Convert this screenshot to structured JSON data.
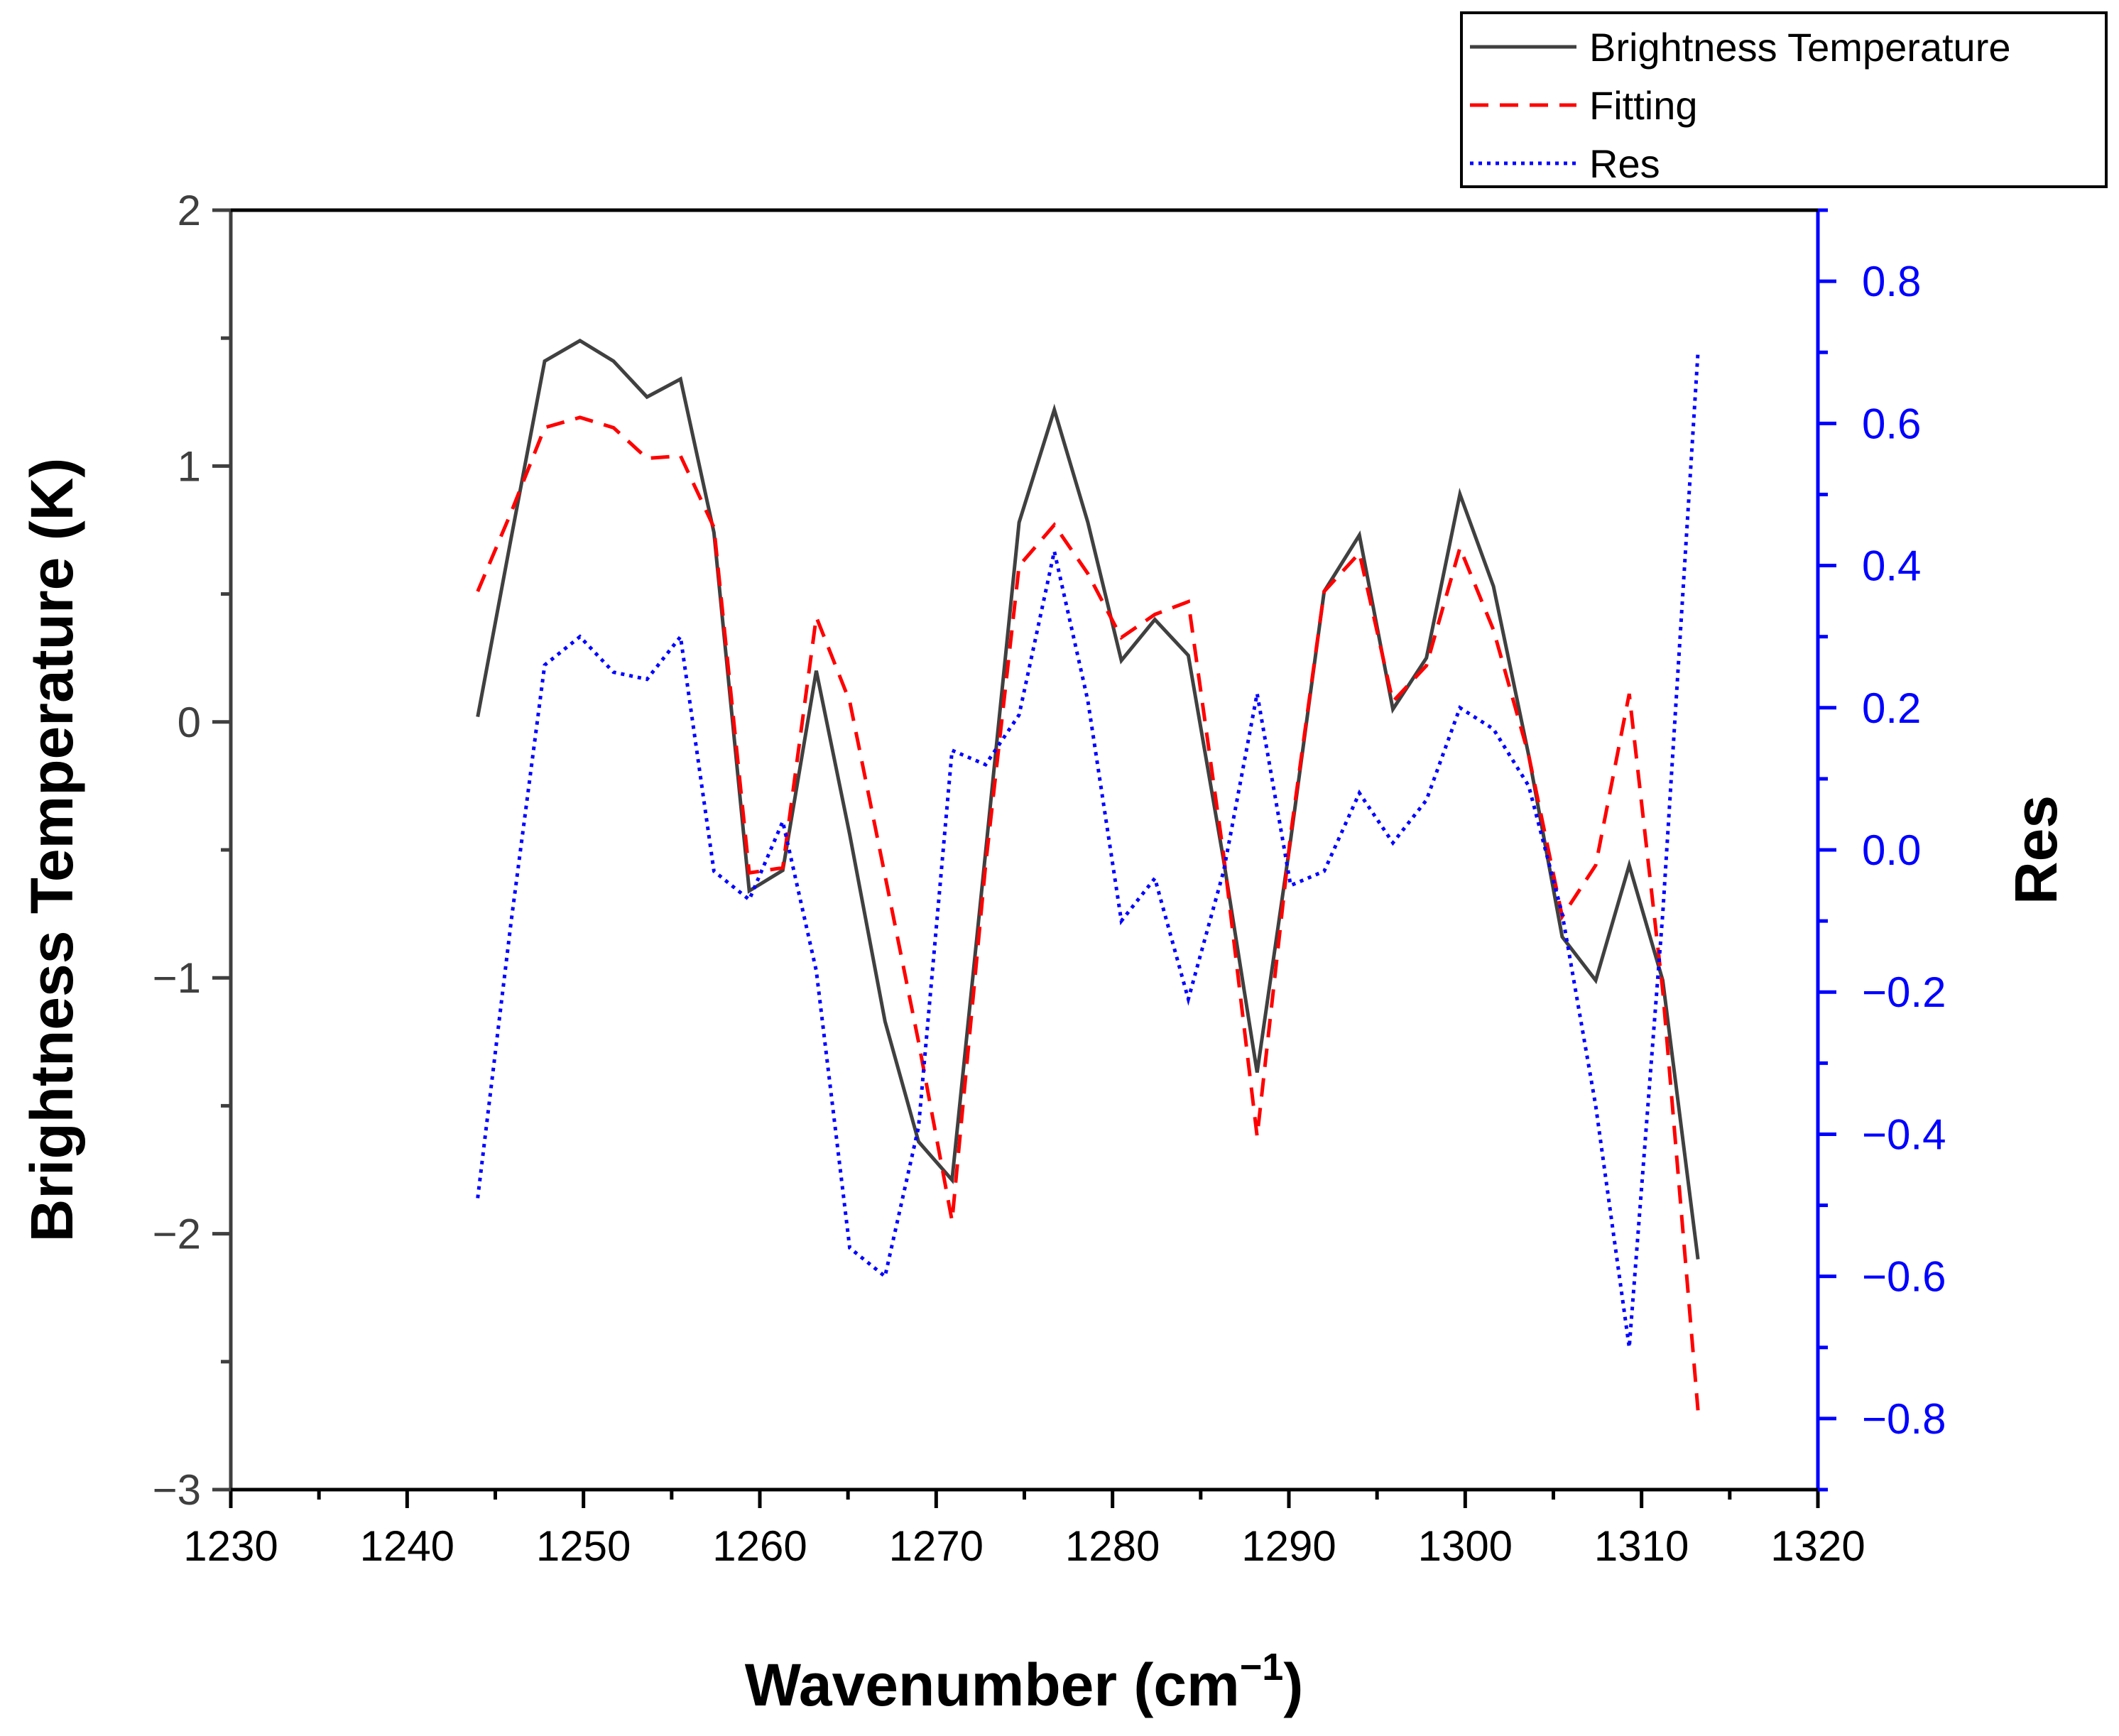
{
  "chart_data": {
    "type": "line",
    "title": "",
    "xlabel": "Wavenumber (cm",
    "xlabel_sup": "−1",
    "xlabel_end": ")",
    "ylabel": "Brightness Temperature (K)",
    "y2label": "Res",
    "xlim": [
      1230,
      1320
    ],
    "ylim": [
      -3,
      2
    ],
    "y2lim": [
      -0.9,
      0.9
    ],
    "xticks": [
      "1230",
      "1240",
      "1250",
      "1260",
      "1270",
      "1280",
      "1290",
      "1300",
      "1310",
      "1320"
    ],
    "yticks": [
      "−3",
      "−2",
      "−1",
      "0",
      "1",
      "2"
    ],
    "y2ticks": [
      "−0.8",
      "−0.6",
      "−0.4",
      "−0.2",
      "0.0",
      "0.2",
      "0.4",
      "0.6",
      "0.8"
    ],
    "legend_position": "top-right, outside plot",
    "colors": {
      "brightness": "#404040",
      "fitting": "#ff0000",
      "res": "#0000ff",
      "axis_left": "#3f3f3f",
      "axis_right": "#0000ff"
    },
    "x": [
      1244,
      1245.9,
      1247.8,
      1249.8,
      1251.7,
      1253.6,
      1255.5,
      1257.4,
      1259.4,
      1261.3,
      1263.2,
      1265.1,
      1267.1,
      1269,
      1270.9,
      1272.8,
      1274.7,
      1276.7,
      1278.6,
      1280.5,
      1282.4,
      1284.3,
      1286.3,
      1288.2,
      1290.1,
      1292,
      1294,
      1295.9,
      1297.8,
      1299.7,
      1301.6,
      1303.6,
      1305.5,
      1307.4,
      1309.3,
      1311.2,
      1313.2
    ],
    "series": [
      {
        "name": "Brightness Temperature",
        "axis": "left",
        "style": "solid",
        "values": [
          0.02,
          0.72,
          1.41,
          1.49,
          1.41,
          1.27,
          1.34,
          0.74,
          -0.66,
          -0.58,
          0.2,
          -0.44,
          -1.17,
          -1.64,
          -1.79,
          -0.51,
          0.78,
          1.22,
          0.78,
          0.24,
          0.4,
          0.26,
          -0.54,
          -1.37,
          -0.46,
          0.51,
          0.73,
          0.05,
          0.25,
          0.89,
          0.53,
          -0.13,
          -0.84,
          -1.01,
          -0.56,
          -1.01,
          -2.1
        ]
      },
      {
        "name": "Fitting",
        "axis": "left",
        "style": "dashed",
        "values": [
          0.51,
          0.82,
          1.15,
          1.19,
          1.15,
          1.03,
          1.04,
          0.76,
          -0.59,
          -0.57,
          0.41,
          0.08,
          -0.6,
          -1.25,
          -1.95,
          -0.56,
          0.61,
          0.77,
          0.58,
          0.33,
          0.42,
          0.47,
          -0.52,
          -1.62,
          -0.44,
          0.51,
          0.66,
          0.08,
          0.22,
          0.68,
          0.36,
          -0.13,
          -0.76,
          -0.56,
          0.11,
          -1.05,
          -2.69
        ]
      },
      {
        "name": "Res",
        "axis": "right",
        "style": "dotted",
        "values": [
          -0.49,
          -0.1,
          0.26,
          0.3,
          0.25,
          0.24,
          0.3,
          -0.03,
          -0.07,
          0.04,
          -0.17,
          -0.56,
          -0.6,
          -0.39,
          0.14,
          0.12,
          0.19,
          0.42,
          0.21,
          -0.1,
          -0.04,
          -0.21,
          -0.03,
          0.22,
          -0.05,
          -0.03,
          0.08,
          0.01,
          0.07,
          0.2,
          0.17,
          0.09,
          -0.09,
          -0.36,
          -0.7,
          -0.09,
          0.7
        ]
      }
    ]
  }
}
